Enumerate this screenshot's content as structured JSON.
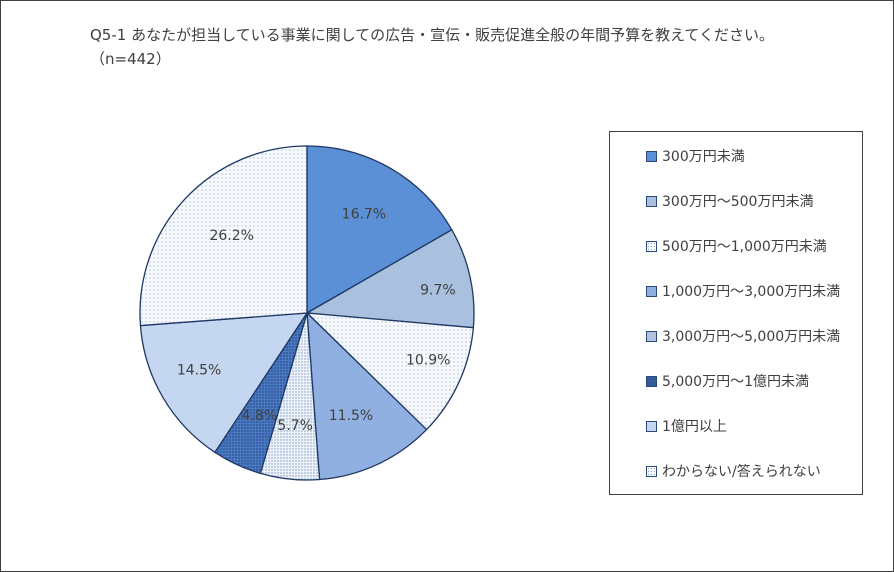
{
  "title": "Q5-1 あなたが担当している事業に関しての広告・宣伝・販売促進全般の年間予算を教えてください。（n=442）",
  "chart_data": {
    "type": "pie",
    "categories": [
      "300万円未満",
      "300万円～500万円未満",
      "500万円～1,000万円未満",
      "1,000万円～3,000万円未満",
      "3,000万円～5,000万円未満",
      "5,000万円～1億円未満",
      "1億円以上",
      "わからない/答えられない"
    ],
    "values": [
      16.7,
      9.7,
      10.9,
      11.5,
      5.7,
      4.8,
      14.5,
      26.2
    ],
    "labels": [
      "16.7%",
      "9.7%",
      "10.9%",
      "11.5%",
      "5.7%",
      "4.8%",
      "14.5%",
      "26.2%"
    ],
    "colors": [
      "#5b8fd6",
      "#a9c0de",
      "#f3f6fb",
      "#8fb0e0",
      "#f1f5fb",
      "#4a78c2",
      "#c5d7f0",
      "#f6f8fc"
    ],
    "patterns": [
      "solid",
      "solid",
      "dots",
      "solid",
      "dots-dense",
      "dots-dark",
      "solid",
      "dots"
    ],
    "start_angle_deg": 0,
    "direction": "clockwise",
    "legend_position": "right"
  }
}
